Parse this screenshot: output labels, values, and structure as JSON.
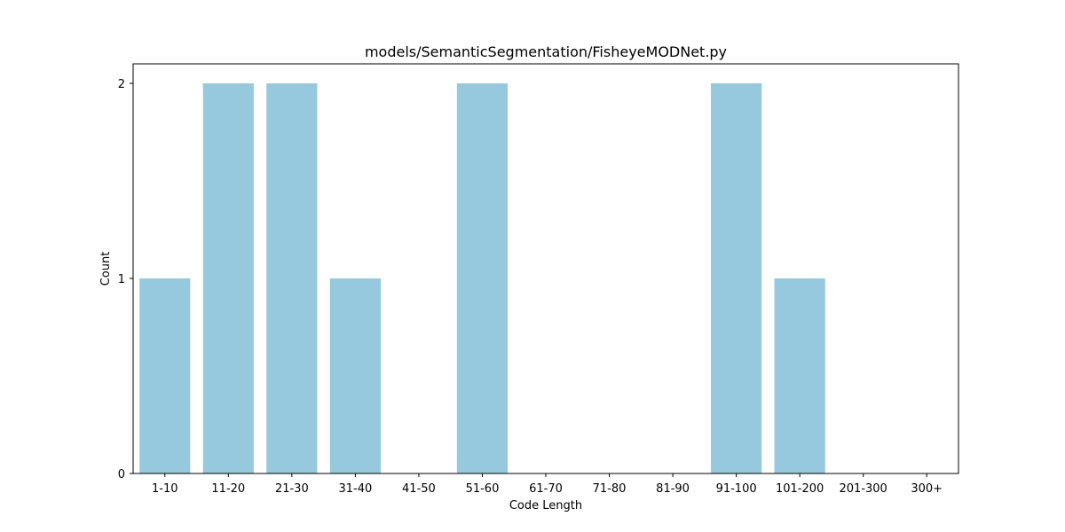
{
  "chart_data": {
    "type": "bar",
    "title": "models/SemanticSegmentation/FisheyeMODNet.py",
    "xlabel": "Code Length",
    "ylabel": "Count",
    "categories": [
      "1-10",
      "11-20",
      "21-30",
      "31-40",
      "41-50",
      "51-60",
      "61-70",
      "71-80",
      "81-90",
      "91-100",
      "101-200",
      "201-300",
      "300+"
    ],
    "values": [
      1,
      2,
      2,
      1,
      0,
      2,
      0,
      0,
      0,
      2,
      1,
      0,
      0
    ],
    "ylim": [
      0,
      2.1
    ],
    "yticks": [
      0,
      1,
      2
    ],
    "bar_color": "#96c9de",
    "grid": false,
    "legend": "none"
  }
}
